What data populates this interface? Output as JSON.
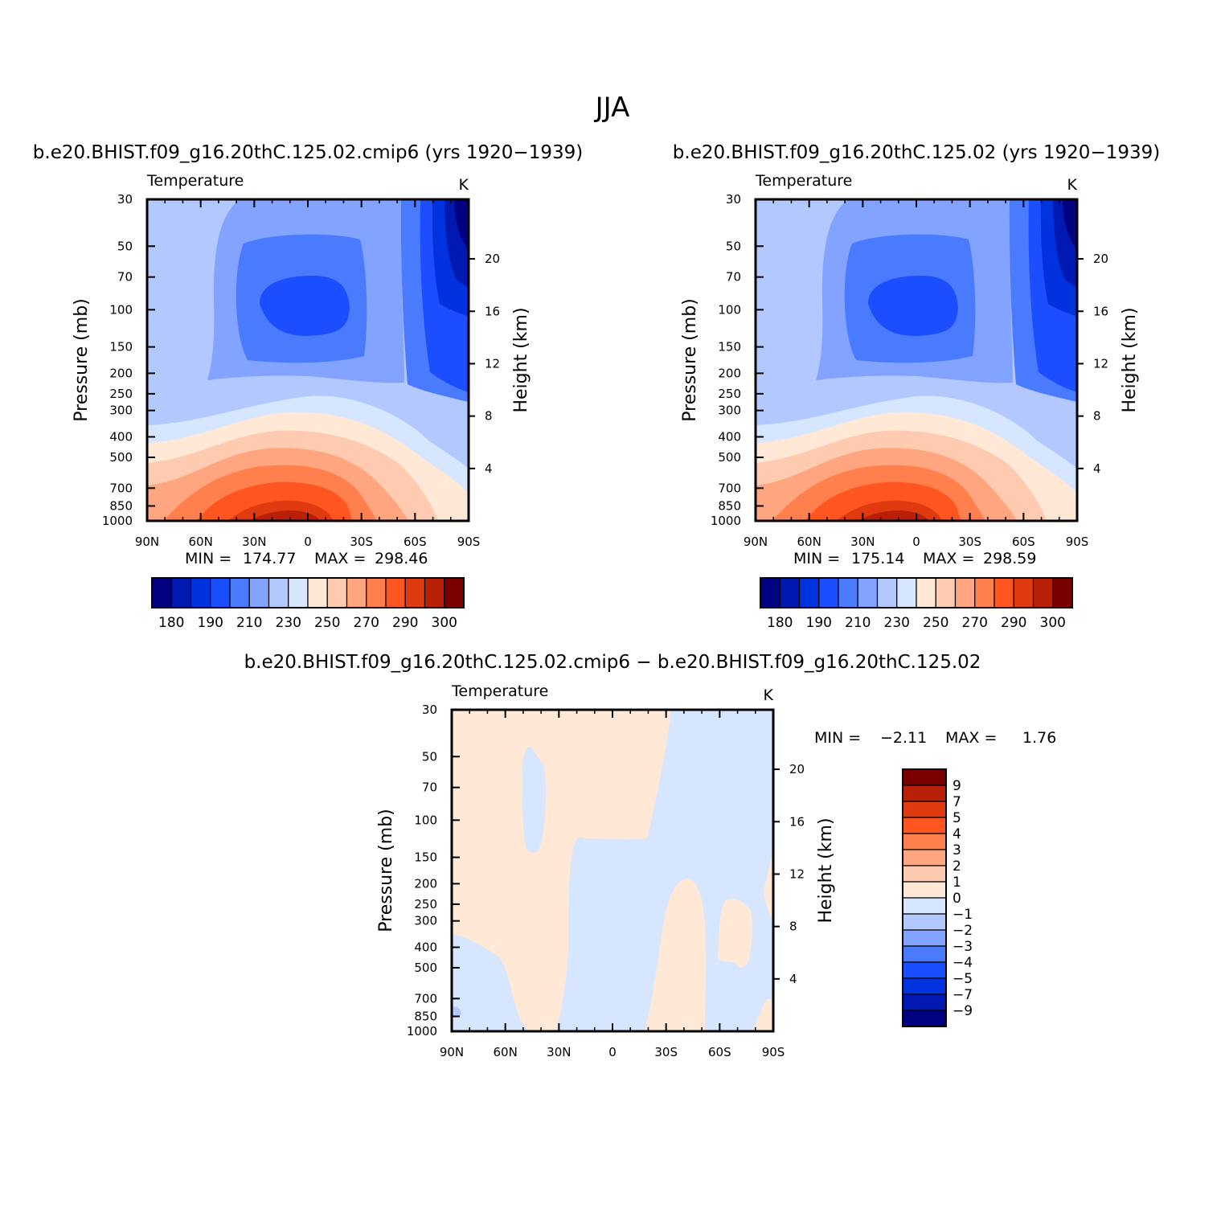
{
  "figure": {
    "title": "JJA"
  },
  "palettes": {
    "abs": [
      "#000080",
      "#0019b0",
      "#0033dd",
      "#1a4eff",
      "#4a7bff",
      "#82a3ff",
      "#b2c8ff",
      "#d6e6ff",
      "#ffe8d6",
      "#ffcbb0",
      "#ffa680",
      "#ff7f4d",
      "#ff5520",
      "#e03a10",
      "#b82008",
      "#7a0000"
    ],
    "diff": [
      "#000080",
      "#0019b0",
      "#0033dd",
      "#1a4eff",
      "#4a7bff",
      "#82a3ff",
      "#b2c8ff",
      "#d6e6ff",
      "#ffe8d6",
      "#ffcbb0",
      "#ffa680",
      "#ff7f4d",
      "#ff5520",
      "#e03a10",
      "#b82008",
      "#7a0000"
    ]
  },
  "chart_data": [
    {
      "type": "heatmap",
      "title": "b.e20.BHIST.f09_g16.20thC.125.02.cmip6 (yrs 1920−1939)",
      "subtitle_left": "Temperature",
      "subtitle_right": "K",
      "ylabel": "Pressure (mb)",
      "y2label": "Height (km)",
      "x_ticks": [
        "90N",
        "60N",
        "30N",
        "0",
        "30S",
        "60S",
        "90S"
      ],
      "xlim": [
        90,
        -90
      ],
      "y_ticks": [
        30,
        50,
        70,
        100,
        150,
        200,
        250,
        300,
        400,
        500,
        700,
        850,
        1000
      ],
      "ylim": [
        1000,
        30
      ],
      "y2_ticks": [
        4,
        8,
        12,
        16,
        20
      ],
      "min_label": "MIN =",
      "min_value": "174.77",
      "max_label": "MAX =",
      "max_value": "298.46",
      "colorbar_labels": [
        "180",
        "190",
        "210",
        "230",
        "250",
        "270",
        "290",
        "300"
      ],
      "colorbar_orientation": "horizontal"
    },
    {
      "type": "heatmap",
      "title": "b.e20.BHIST.f09_g16.20thC.125.02 (yrs 1920−1939)",
      "subtitle_left": "Temperature",
      "subtitle_right": "K",
      "ylabel": "Pressure (mb)",
      "y2label": "Height (km)",
      "x_ticks": [
        "90N",
        "60N",
        "30N",
        "0",
        "30S",
        "60S",
        "90S"
      ],
      "xlim": [
        90,
        -90
      ],
      "y_ticks": [
        30,
        50,
        70,
        100,
        150,
        200,
        250,
        300,
        400,
        500,
        700,
        850,
        1000
      ],
      "ylim": [
        1000,
        30
      ],
      "y2_ticks": [
        4,
        8,
        12,
        16,
        20
      ],
      "min_label": "MIN =",
      "min_value": "175.14",
      "max_label": "MAX =",
      "max_value": "298.59",
      "colorbar_labels": [
        "180",
        "190",
        "210",
        "230",
        "250",
        "270",
        "290",
        "300"
      ],
      "colorbar_orientation": "horizontal"
    },
    {
      "type": "heatmap",
      "title": "b.e20.BHIST.f09_g16.20thC.125.02.cmip6 − b.e20.BHIST.f09_g16.20thC.125.02",
      "subtitle_left": "Temperature",
      "subtitle_right": "K",
      "ylabel": "Pressure (mb)",
      "y2label": "Height (km)",
      "x_ticks": [
        "90N",
        "60N",
        "30N",
        "0",
        "30S",
        "60S",
        "90S"
      ],
      "xlim": [
        90,
        -90
      ],
      "y_ticks": [
        30,
        50,
        70,
        100,
        150,
        200,
        250,
        300,
        400,
        500,
        700,
        850,
        1000
      ],
      "ylim": [
        1000,
        30
      ],
      "y2_ticks": [
        4,
        8,
        12,
        16,
        20
      ],
      "min_label": "MIN =",
      "min_value": "−2.11",
      "max_label": "MAX =",
      "max_value": "1.76",
      "colorbar_labels": [
        "9",
        "7",
        "5",
        "4",
        "3",
        "2",
        "1",
        "0",
        "−1",
        "−2",
        "−3",
        "−4",
        "−5",
        "−7",
        "−9"
      ],
      "colorbar_orientation": "vertical"
    }
  ]
}
